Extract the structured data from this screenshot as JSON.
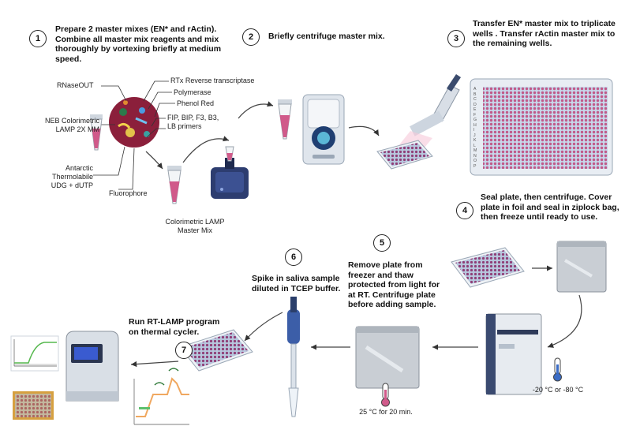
{
  "colors": {
    "pink": "#d05a8a",
    "blue": "#8fb8d8",
    "navy": "#243a6b",
    "arrow": "#444444"
  },
  "steps": [
    {
      "number": "1",
      "text": "Prepare 2 master mixes (EN* and rActin). Combine all master mix reagents and mix thoroughly by vortexing briefly at medium speed."
    },
    {
      "number": "2",
      "text": "Briefly centrifuge master mix."
    },
    {
      "number": "3",
      "text": "Transfer EN* master mix to triplicate wells . Transfer rActin master mix to the remaining wells."
    },
    {
      "number": "4",
      "text": "Seal plate, then centrifuge. Cover plate in foil and seal in ziplock bag, then freeze until ready to use."
    },
    {
      "number": "5",
      "text": "Remove plate from freezer and thaw protected from light for at RT. Centrifuge plate before adding sample."
    },
    {
      "number": "6",
      "text": "Spike in saliva sample diluted in TCEP buffer."
    },
    {
      "number": "7",
      "text": "Run RT-LAMP program on thermal cycler."
    }
  ],
  "reagents": {
    "rnaseout": "RNaseOUT",
    "rtx": "RTx Reverse transcriptase",
    "polymerase": "Polymerase",
    "phenol_red": "Phenol Red",
    "primers": "FIP, BIP, F3, B3, LB primers",
    "neb": "NEB Colorimetric LAMP 2X MM",
    "udg": "Antarctic Thermolabile UDG + dUTP",
    "fluorophore": "Fluorophore",
    "master_mix": "Colorimetric LAMP Master Mix"
  },
  "plate_rows": [
    "A",
    "B",
    "C",
    "D",
    "E",
    "F",
    "G",
    "H",
    "I",
    "J",
    "K",
    "L",
    "M",
    "N",
    "O",
    "P"
  ],
  "temps": {
    "freezer": "-20 °C or -80 °C",
    "thaw": "25 °C for 20 min."
  }
}
